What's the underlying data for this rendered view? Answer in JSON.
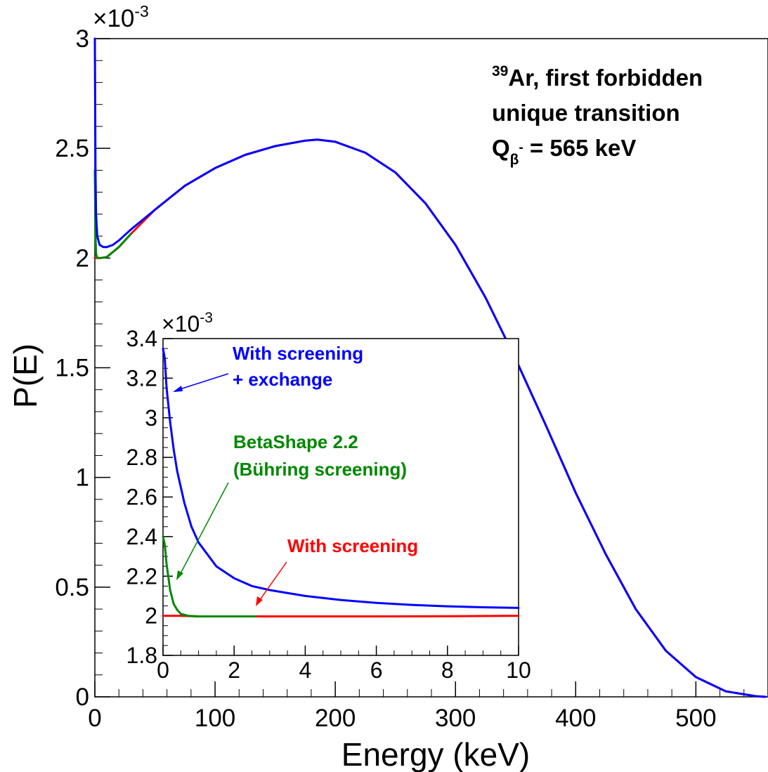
{
  "chart_data": [
    {
      "type": "line",
      "xlabel": "Energy (keV)",
      "ylabel": "P(E)",
      "y_multiplier": "×10",
      "y_multiplier_exp": "-3",
      "xlim": [
        0,
        560
      ],
      "ylim": [
        0,
        3
      ],
      "x_ticks": [
        0,
        100,
        200,
        300,
        400,
        500
      ],
      "y_ticks": [
        0,
        0.5,
        1,
        1.5,
        2,
        2.5,
        3
      ],
      "x_tick_labels": [
        "0",
        "100",
        "200",
        "300",
        "400",
        "500"
      ],
      "y_tick_labels": [
        "0",
        "0.5",
        "1",
        "1.5",
        "2",
        "2.5",
        "3"
      ],
      "annotation": {
        "isotope_mass": "39",
        "line1": "Ar, first forbidden",
        "line2": "unique transition",
        "q_symbol": "Q",
        "q_sub": "β",
        "q_sup": "-",
        "q_value": " = 565 keV"
      },
      "series": [
        {
          "color": "#ff0000",
          "x": [
            0,
            5,
            10,
            20,
            30,
            50,
            75,
            100,
            125,
            150,
            175,
            185,
            200,
            225,
            250,
            275,
            300,
            325,
            350,
            375,
            400,
            425,
            450,
            475,
            500,
            525,
            550,
            558
          ],
          "y": [
            2.0,
            2.0,
            2.005,
            2.05,
            2.11,
            2.22,
            2.33,
            2.41,
            2.47,
            2.51,
            2.535,
            2.54,
            2.53,
            2.48,
            2.39,
            2.25,
            2.06,
            1.82,
            1.54,
            1.24,
            0.93,
            0.65,
            0.4,
            0.21,
            0.09,
            0.025,
            0.003,
            0.0
          ]
        },
        {
          "color": "#008800",
          "x": [
            0,
            0.5,
            1,
            2,
            3,
            5,
            10,
            20,
            30
          ],
          "y": [
            2.4,
            2.1,
            2.02,
            2.0,
            2.0,
            2.0,
            2.005,
            2.05,
            2.11
          ]
        },
        {
          "color": "#0000ff",
          "x": [
            0,
            0.5,
            1,
            2,
            4,
            7,
            10,
            15,
            20,
            30,
            50,
            75,
            100,
            125,
            150,
            175,
            185,
            200,
            225,
            250,
            275,
            300,
            325,
            350,
            375,
            400,
            425,
            450,
            475,
            500,
            525,
            550,
            558
          ],
          "y": [
            3.0,
            2.4,
            2.2,
            2.1,
            2.06,
            2.05,
            2.05,
            2.06,
            2.08,
            2.13,
            2.22,
            2.33,
            2.41,
            2.47,
            2.51,
            2.535,
            2.54,
            2.53,
            2.48,
            2.39,
            2.25,
            2.06,
            1.82,
            1.54,
            1.24,
            0.93,
            0.65,
            0.4,
            0.21,
            0.09,
            0.025,
            0.003,
            0.0
          ]
        }
      ]
    },
    {
      "type": "line",
      "y_multiplier": "×10",
      "y_multiplier_exp": "-3",
      "xlim": [
        0,
        10
      ],
      "ylim": [
        1.8,
        3.4
      ],
      "x_ticks": [
        0,
        2,
        4,
        6,
        8,
        10
      ],
      "y_ticks": [
        1.8,
        2,
        2.2,
        2.4,
        2.6,
        2.8,
        3,
        3.2,
        3.4
      ],
      "x_tick_labels": [
        "0",
        "2",
        "4",
        "6",
        "8",
        "10"
      ],
      "y_tick_labels": [
        "1.8",
        "2",
        "2.2",
        "2.4",
        "2.6",
        "2.8",
        "3",
        "3.2",
        "3.4"
      ],
      "series": [
        {
          "name": "With screening",
          "color": "#ff0000",
          "x": [
            0,
            0.5,
            1,
            2,
            4,
            6,
            8,
            10
          ],
          "y": [
            2.0,
            2.0,
            1.997,
            1.997,
            1.997,
            1.997,
            1.998,
            2.0
          ]
        },
        {
          "name": "BetaShape 2.2\n(Bühring screening)",
          "color": "#008800",
          "x": [
            0,
            0.05,
            0.1,
            0.2,
            0.3,
            0.4,
            0.5,
            0.7,
            1.0,
            1.5,
            2.0,
            2.6
          ],
          "y": [
            2.4,
            2.36,
            2.26,
            2.13,
            2.06,
            2.03,
            2.01,
            2.0,
            1.997,
            1.997,
            1.997,
            1.997
          ]
        },
        {
          "name": "With screening\n+ exchange",
          "color": "#0000ff",
          "x": [
            0,
            0.05,
            0.1,
            0.2,
            0.3,
            0.4,
            0.6,
            0.8,
            1.0,
            1.5,
            2.0,
            2.5,
            3,
            4,
            5,
            6,
            7,
            8,
            9,
            10
          ],
          "y": [
            3.35,
            3.3,
            3.15,
            2.98,
            2.84,
            2.73,
            2.57,
            2.45,
            2.37,
            2.25,
            2.19,
            2.15,
            2.13,
            2.1,
            2.08,
            2.065,
            2.055,
            2.048,
            2.043,
            2.04
          ]
        }
      ]
    }
  ]
}
